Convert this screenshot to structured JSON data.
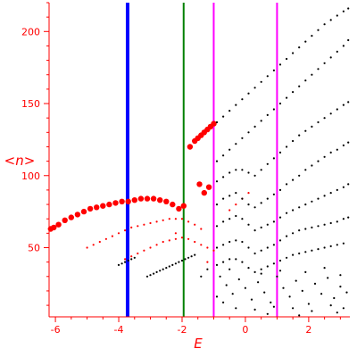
{
  "chart_data": {
    "type": "scatter",
    "title": "",
    "xlabel": "E",
    "ylabel": "<n>",
    "xlim": [
      -6.2,
      3.3
    ],
    "ylim": [
      2,
      220
    ],
    "xticks": [
      -6,
      -4,
      -2,
      0,
      2
    ],
    "xtick_labels": [
      "-6",
      "-4",
      "-2",
      "0",
      "2"
    ],
    "yticks": [
      50,
      100,
      150,
      200
    ],
    "ytick_labels": [
      "50",
      "100",
      "150",
      "200"
    ],
    "grid": false,
    "colors": {
      "axis": "#ff0000",
      "tick_labels": "#ff0000",
      "axis_titles": "#ff0000",
      "highlighted_points": "#ff0000",
      "other_points": "#000000"
    },
    "vertical_lines": [
      {
        "x": -3.72,
        "color": "#0000ff",
        "width": "thick"
      },
      {
        "x": -1.95,
        "color": "#008000",
        "width": "thin"
      },
      {
        "x": -1.0,
        "color": "#ff00ff",
        "width": "thin"
      },
      {
        "x": 1.0,
        "color": "#ff00ff",
        "width": "thin"
      }
    ],
    "series": [
      {
        "color": "#ff0000",
        "marker": "large",
        "points": [
          [
            -6.15,
            63
          ],
          [
            -6.05,
            64
          ],
          [
            -5.9,
            66
          ],
          [
            -5.7,
            69
          ],
          [
            -5.5,
            71
          ],
          [
            -5.3,
            73
          ],
          [
            -5.1,
            75
          ],
          [
            -4.9,
            77
          ],
          [
            -4.7,
            78
          ],
          [
            -4.5,
            79
          ],
          [
            -4.3,
            80
          ],
          [
            -4.1,
            81
          ],
          [
            -3.9,
            82
          ],
          [
            -3.7,
            82
          ],
          [
            -3.5,
            83
          ],
          [
            -3.3,
            84
          ],
          [
            -3.1,
            84
          ],
          [
            -2.9,
            84
          ],
          [
            -2.7,
            83
          ],
          [
            -2.5,
            82
          ],
          [
            -2.3,
            80
          ],
          [
            -2.1,
            77
          ],
          [
            -1.95,
            79
          ],
          [
            -1.75,
            120
          ],
          [
            -1.6,
            124
          ],
          [
            -1.5,
            126
          ],
          [
            -1.4,
            128
          ],
          [
            -1.3,
            130
          ],
          [
            -1.2,
            132
          ],
          [
            -1.1,
            134
          ],
          [
            -1.0,
            136
          ],
          [
            -1.45,
            94
          ],
          [
            -1.3,
            88
          ],
          [
            -1.15,
            92
          ]
        ]
      },
      {
        "color": "#ff0000",
        "marker": "small",
        "points": [
          [
            -5.0,
            50
          ],
          [
            -4.8,
            52
          ],
          [
            -4.6,
            54
          ],
          [
            -4.4,
            56
          ],
          [
            -4.2,
            58
          ],
          [
            -4.0,
            60
          ],
          [
            -3.8,
            62
          ],
          [
            -3.6,
            64
          ],
          [
            -3.4,
            65
          ],
          [
            -3.2,
            66
          ],
          [
            -3.0,
            67
          ],
          [
            -2.8,
            68
          ],
          [
            -2.6,
            69
          ],
          [
            -2.4,
            70
          ],
          [
            -2.2,
            70
          ],
          [
            -2.0,
            70
          ],
          [
            -1.8,
            68
          ],
          [
            -1.6,
            66
          ],
          [
            -1.4,
            63
          ],
          [
            -3.8,
            42
          ],
          [
            -3.6,
            44
          ],
          [
            -3.4,
            46
          ],
          [
            -3.2,
            48
          ],
          [
            -3.0,
            50
          ],
          [
            -2.8,
            52
          ],
          [
            -2.6,
            54
          ],
          [
            -2.4,
            55
          ],
          [
            -2.2,
            56
          ],
          [
            -2.0,
            57
          ],
          [
            -1.8,
            56
          ],
          [
            -1.6,
            54
          ],
          [
            -1.4,
            52
          ],
          [
            -1.2,
            50
          ],
          [
            -1.0,
            48
          ],
          [
            -0.5,
            76
          ],
          [
            -0.3,
            80
          ],
          [
            -0.1,
            84
          ],
          [
            0.1,
            88
          ],
          [
            -2.2,
            60
          ],
          [
            -1.2,
            40
          ]
        ]
      },
      {
        "color": "#000000",
        "marker": "small",
        "points": [
          [
            -4.0,
            38
          ],
          [
            -3.9,
            39
          ],
          [
            -3.8,
            40
          ],
          [
            -3.7,
            41
          ],
          [
            -3.6,
            42
          ],
          [
            -3.5,
            43
          ],
          [
            -3.1,
            30
          ],
          [
            -3.0,
            31
          ],
          [
            -2.9,
            32
          ],
          [
            -2.8,
            33
          ],
          [
            -2.7,
            34
          ],
          [
            -2.6,
            35
          ],
          [
            -2.5,
            36
          ],
          [
            -2.4,
            37
          ],
          [
            -2.3,
            38
          ],
          [
            -2.2,
            39
          ],
          [
            -2.1,
            40
          ],
          [
            -2.0,
            41
          ],
          [
            -1.9,
            42
          ],
          [
            -1.8,
            43
          ],
          [
            -1.7,
            44
          ],
          [
            -1.6,
            45
          ],
          [
            -0.9,
            137
          ],
          [
            -0.7,
            141
          ],
          [
            -0.5,
            145
          ],
          [
            -0.3,
            149
          ],
          [
            -0.1,
            153
          ],
          [
            0.1,
            157
          ],
          [
            0.3,
            161
          ],
          [
            0.5,
            165
          ],
          [
            0.7,
            169
          ],
          [
            0.9,
            173
          ],
          [
            1.1,
            177
          ],
          [
            1.3,
            181
          ],
          [
            1.5,
            185
          ],
          [
            1.7,
            189
          ],
          [
            1.9,
            193
          ],
          [
            2.1,
            197
          ],
          [
            2.3,
            201
          ],
          [
            2.5,
            205
          ],
          [
            2.7,
            208
          ],
          [
            2.9,
            211
          ],
          [
            3.1,
            214
          ],
          [
            3.25,
            216
          ],
          [
            -0.9,
            110
          ],
          [
            -0.7,
            114
          ],
          [
            -0.5,
            118
          ],
          [
            -0.3,
            122
          ],
          [
            -0.1,
            126
          ],
          [
            0.1,
            130
          ],
          [
            0.3,
            134
          ],
          [
            0.5,
            138
          ],
          [
            0.7,
            142
          ],
          [
            0.9,
            146
          ],
          [
            1.1,
            150
          ],
          [
            1.3,
            154
          ],
          [
            1.5,
            158
          ],
          [
            1.7,
            162
          ],
          [
            1.9,
            166
          ],
          [
            2.1,
            170
          ],
          [
            2.3,
            174
          ],
          [
            2.5,
            178
          ],
          [
            2.7,
            182
          ],
          [
            2.9,
            186
          ],
          [
            3.1,
            190
          ],
          [
            3.25,
            194
          ],
          [
            -0.9,
            96
          ],
          [
            -0.7,
            99
          ],
          [
            -0.5,
            102
          ],
          [
            -0.3,
            104
          ],
          [
            -0.1,
            104
          ],
          [
            0.1,
            102
          ],
          [
            0.3,
            100
          ],
          [
            0.5,
            104
          ],
          [
            0.7,
            108
          ],
          [
            0.9,
            112
          ],
          [
            1.1,
            116
          ],
          [
            1.3,
            120
          ],
          [
            1.5,
            124
          ],
          [
            1.7,
            128
          ],
          [
            1.9,
            131
          ],
          [
            2.1,
            134
          ],
          [
            2.3,
            137
          ],
          [
            2.5,
            140
          ],
          [
            2.7,
            143
          ],
          [
            2.9,
            146
          ],
          [
            3.1,
            149
          ],
          [
            3.25,
            151
          ],
          [
            -0.9,
            80
          ],
          [
            -0.7,
            84
          ],
          [
            -0.5,
            86
          ],
          [
            -0.3,
            88
          ],
          [
            -0.1,
            84
          ],
          [
            0.1,
            80
          ],
          [
            0.3,
            78
          ],
          [
            0.5,
            81
          ],
          [
            0.7,
            84
          ],
          [
            0.9,
            87
          ],
          [
            1.1,
            90
          ],
          [
            1.3,
            94
          ],
          [
            1.5,
            97
          ],
          [
            1.7,
            100
          ],
          [
            1.9,
            104
          ],
          [
            2.1,
            107
          ],
          [
            2.3,
            110
          ],
          [
            2.5,
            113
          ],
          [
            2.7,
            116
          ],
          [
            2.9,
            118
          ],
          [
            3.1,
            121
          ],
          [
            3.25,
            123
          ],
          [
            -0.9,
            65
          ],
          [
            -0.7,
            68
          ],
          [
            -0.5,
            70
          ],
          [
            -0.3,
            72
          ],
          [
            -0.1,
            70
          ],
          [
            0.1,
            66
          ],
          [
            0.3,
            62
          ],
          [
            0.5,
            64
          ],
          [
            0.7,
            66
          ],
          [
            0.9,
            68
          ],
          [
            1.1,
            71
          ],
          [
            1.3,
            74
          ],
          [
            1.5,
            76
          ],
          [
            1.7,
            78
          ],
          [
            1.9,
            80
          ],
          [
            2.1,
            82
          ],
          [
            2.3,
            84
          ],
          [
            2.5,
            86
          ],
          [
            2.7,
            88
          ],
          [
            2.9,
            90
          ],
          [
            3.1,
            92
          ],
          [
            3.25,
            94
          ],
          [
            -0.9,
            50
          ],
          [
            -0.7,
            52
          ],
          [
            -0.5,
            54
          ],
          [
            -0.3,
            55
          ],
          [
            -0.1,
            54
          ],
          [
            0.1,
            50
          ],
          [
            0.3,
            46
          ],
          [
            0.5,
            48
          ],
          [
            0.7,
            50
          ],
          [
            0.9,
            52
          ],
          [
            1.1,
            55
          ],
          [
            1.3,
            58
          ],
          [
            1.5,
            60
          ],
          [
            1.7,
            62
          ],
          [
            1.9,
            63
          ],
          [
            2.1,
            64
          ],
          [
            2.3,
            65
          ],
          [
            2.5,
            66
          ],
          [
            2.7,
            67
          ],
          [
            2.9,
            68
          ],
          [
            3.1,
            70
          ],
          [
            3.25,
            71
          ],
          [
            -0.9,
            38
          ],
          [
            -0.7,
            40
          ],
          [
            -0.5,
            42
          ],
          [
            -0.3,
            42
          ],
          [
            -0.1,
            40
          ],
          [
            0.1,
            36
          ],
          [
            0.3,
            33
          ],
          [
            0.5,
            35
          ],
          [
            0.7,
            37
          ],
          [
            0.9,
            39
          ],
          [
            1.1,
            41
          ],
          [
            1.3,
            43
          ],
          [
            1.5,
            45
          ],
          [
            1.7,
            46
          ],
          [
            1.9,
            47
          ],
          [
            2.1,
            48
          ],
          [
            2.3,
            49
          ],
          [
            2.5,
            50
          ],
          [
            2.7,
            51
          ],
          [
            2.9,
            52
          ],
          [
            3.1,
            53
          ],
          [
            -0.8,
            30
          ],
          [
            -0.6,
            24
          ],
          [
            -0.4,
            18
          ],
          [
            -0.2,
            28
          ],
          [
            0.0,
            22
          ],
          [
            0.2,
            14
          ],
          [
            0.4,
            26
          ],
          [
            0.6,
            19
          ],
          [
            0.8,
            12
          ],
          [
            1.0,
            30
          ],
          [
            1.2,
            22
          ],
          [
            1.4,
            16
          ],
          [
            1.6,
            27
          ],
          [
            1.8,
            20
          ],
          [
            2.0,
            11
          ],
          [
            2.2,
            25
          ],
          [
            2.4,
            18
          ],
          [
            2.6,
            29
          ],
          [
            2.8,
            15
          ],
          [
            3.0,
            23
          ],
          [
            3.2,
            19
          ],
          [
            -0.7,
            12
          ],
          [
            -0.3,
            8
          ],
          [
            0.3,
            7
          ],
          [
            0.9,
            9
          ],
          [
            1.5,
            8
          ],
          [
            2.1,
            6
          ],
          [
            2.7,
            10
          ],
          [
            3.1,
            8
          ],
          [
            -0.5,
            35
          ],
          [
            0.5,
            32
          ],
          [
            1.1,
            34
          ],
          [
            1.9,
            33
          ],
          [
            2.5,
            36
          ],
          [
            3.0,
            31
          ],
          [
            -1.2,
            35
          ],
          [
            -1.4,
            30
          ],
          [
            -0.9,
            16
          ],
          [
            0.7,
            4
          ],
          [
            1.7,
            3
          ],
          [
            2.9,
            5
          ]
        ]
      }
    ]
  }
}
